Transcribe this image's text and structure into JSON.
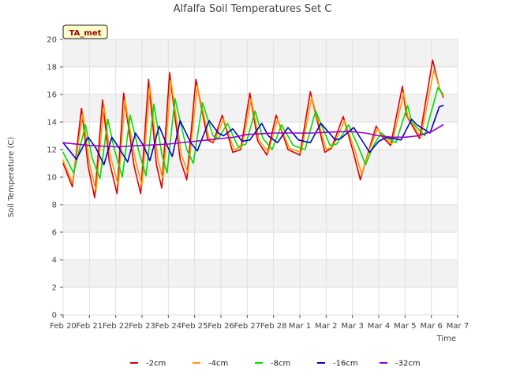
{
  "chart_data": {
    "type": "line",
    "title": "Alfalfa Soil Temperatures Set C",
    "xlabel": "Time",
    "ylabel": "Soil Temperature (C)",
    "annotation": "TA_met",
    "ylim": [
      0,
      20
    ],
    "xlim": [
      0,
      15
    ],
    "yticks": [
      "0",
      "2",
      "4",
      "6",
      "8",
      "10",
      "12",
      "14",
      "16",
      "18",
      "20"
    ],
    "xtick_labels": [
      "Feb 20",
      "Feb 21",
      "Feb 22",
      "Feb 23",
      "Feb 24",
      "Feb 25",
      "Feb 26",
      "Feb 27",
      "Feb 28",
      "Mar 1",
      "Mar 2",
      "Mar 3",
      "Mar 4",
      "Mar 5",
      "Mar 6",
      "Mar 7"
    ],
    "grid": true,
    "legend_position": "bottom",
    "series": [
      {
        "name": "-2cm",
        "color": "#dd0000",
        "x": [
          0.0,
          0.35,
          0.7,
          0.95,
          1.2,
          1.5,
          1.75,
          2.05,
          2.3,
          2.7,
          2.95,
          3.25,
          3.55,
          3.75,
          4.05,
          4.45,
          4.7,
          5.05,
          5.5,
          5.7,
          6.05,
          6.45,
          6.75,
          7.1,
          7.4,
          7.75,
          8.1,
          8.55,
          9.0,
          9.4,
          9.95,
          10.2,
          10.65,
          11.05,
          11.3,
          11.6,
          11.9,
          12.15,
          12.45,
          12.9,
          13.05,
          13.55,
          14.05,
          14.3,
          14.45
        ],
        "values": [
          11.0,
          9.3,
          15.0,
          10.8,
          8.5,
          15.6,
          11.2,
          8.8,
          16.1,
          10.8,
          8.8,
          17.1,
          10.9,
          9.2,
          17.6,
          11.3,
          9.8,
          17.1,
          12.7,
          12.5,
          14.5,
          11.8,
          12.0,
          16.1,
          12.6,
          11.6,
          14.5,
          12.0,
          11.6,
          16.2,
          11.8,
          12.1,
          14.4,
          11.7,
          9.8,
          11.8,
          13.7,
          12.9,
          12.3,
          16.6,
          14.5,
          12.8,
          18.5,
          16.5,
          15.8
        ]
      },
      {
        "name": "-4cm",
        "color": "#ff9900",
        "x": [
          0.0,
          0.35,
          0.75,
          1.0,
          1.25,
          1.55,
          1.8,
          2.1,
          2.35,
          2.75,
          3.0,
          3.3,
          3.6,
          3.8,
          4.1,
          4.5,
          4.75,
          5.1,
          5.55,
          5.75,
          6.1,
          6.5,
          6.8,
          7.15,
          7.45,
          7.8,
          8.15,
          8.6,
          9.05,
          9.45,
          10.0,
          10.25,
          10.7,
          11.1,
          11.35,
          11.65,
          11.95,
          12.2,
          12.5,
          12.95,
          13.1,
          13.6,
          14.1,
          14.35,
          14.45
        ],
        "values": [
          11.2,
          9.6,
          14.6,
          11.0,
          9.0,
          15.2,
          11.5,
          9.4,
          15.6,
          11.2,
          9.4,
          16.6,
          11.3,
          9.8,
          17.0,
          11.6,
          10.3,
          16.6,
          12.8,
          12.6,
          14.2,
          12.0,
          12.2,
          15.7,
          12.7,
          11.8,
          14.2,
          12.1,
          11.8,
          15.8,
          12.0,
          12.2,
          14.1,
          11.9,
          10.2,
          12.0,
          13.5,
          12.9,
          12.4,
          16.1,
          14.4,
          12.9,
          17.8,
          16.2,
          15.9
        ]
      },
      {
        "name": "-8cm",
        "color": "#00dd00",
        "x": [
          0.0,
          0.4,
          0.85,
          1.1,
          1.4,
          1.7,
          1.95,
          2.25,
          2.55,
          2.9,
          3.15,
          3.45,
          3.75,
          3.95,
          4.25,
          4.7,
          4.95,
          5.3,
          5.7,
          5.9,
          6.25,
          6.65,
          6.95,
          7.3,
          7.6,
          7.95,
          8.3,
          8.75,
          9.2,
          9.6,
          10.15,
          10.4,
          10.85,
          11.25,
          11.5,
          11.8,
          12.1,
          12.35,
          12.65,
          13.1,
          13.25,
          13.75,
          14.25,
          14.45
        ],
        "values": [
          11.8,
          10.3,
          13.8,
          11.4,
          9.9,
          14.2,
          12.0,
          10.0,
          14.5,
          11.7,
          10.1,
          15.3,
          11.7,
          10.3,
          15.7,
          12.0,
          11.0,
          15.4,
          13.0,
          12.8,
          13.9,
          12.2,
          12.4,
          14.8,
          12.8,
          12.0,
          13.8,
          12.3,
          12.0,
          14.8,
          12.3,
          12.4,
          13.8,
          12.1,
          10.9,
          12.3,
          13.2,
          12.8,
          12.5,
          15.2,
          14.0,
          13.0,
          16.5,
          16.0
        ]
      },
      {
        "name": "-16cm",
        "color": "#0000cc",
        "x": [
          0.0,
          0.5,
          0.95,
          1.25,
          1.55,
          1.85,
          2.1,
          2.45,
          2.75,
          3.05,
          3.3,
          3.65,
          3.95,
          4.15,
          4.45,
          4.85,
          5.1,
          5.55,
          5.9,
          6.1,
          6.45,
          6.8,
          7.1,
          7.55,
          7.8,
          8.15,
          8.55,
          8.95,
          9.4,
          9.8,
          10.35,
          10.55,
          11.05,
          11.45,
          11.65,
          12.0,
          12.3,
          12.55,
          12.85,
          13.25,
          13.45,
          13.95,
          14.3,
          14.45
        ],
        "values": [
          12.5,
          11.3,
          12.9,
          12.1,
          10.9,
          12.9,
          12.2,
          11.1,
          13.2,
          12.3,
          11.2,
          13.7,
          12.3,
          11.5,
          14.1,
          12.5,
          11.9,
          14.1,
          13.2,
          13.0,
          13.5,
          12.6,
          12.7,
          13.9,
          13.0,
          12.5,
          13.6,
          12.7,
          12.5,
          13.9,
          12.7,
          12.8,
          13.6,
          12.4,
          11.8,
          12.6,
          12.9,
          12.8,
          12.7,
          14.2,
          13.8,
          13.2,
          15.1,
          15.2
        ]
      },
      {
        "name": "-32cm",
        "color": "#9900cc",
        "x": [
          0.0,
          1.0,
          2.0,
          3.0,
          4.0,
          5.0,
          5.5,
          6.0,
          6.5,
          7.0,
          7.5,
          8.0,
          8.5,
          9.0,
          9.5,
          10.0,
          10.5,
          11.0,
          11.5,
          12.0,
          12.5,
          13.0,
          13.5,
          14.0,
          14.45
        ],
        "values": [
          12.5,
          12.3,
          12.2,
          12.3,
          12.4,
          12.6,
          12.7,
          12.8,
          12.9,
          13.1,
          13.15,
          13.2,
          13.2,
          13.2,
          13.2,
          13.25,
          13.3,
          13.3,
          13.2,
          13.0,
          12.9,
          12.9,
          13.0,
          13.3,
          13.8
        ]
      }
    ]
  }
}
